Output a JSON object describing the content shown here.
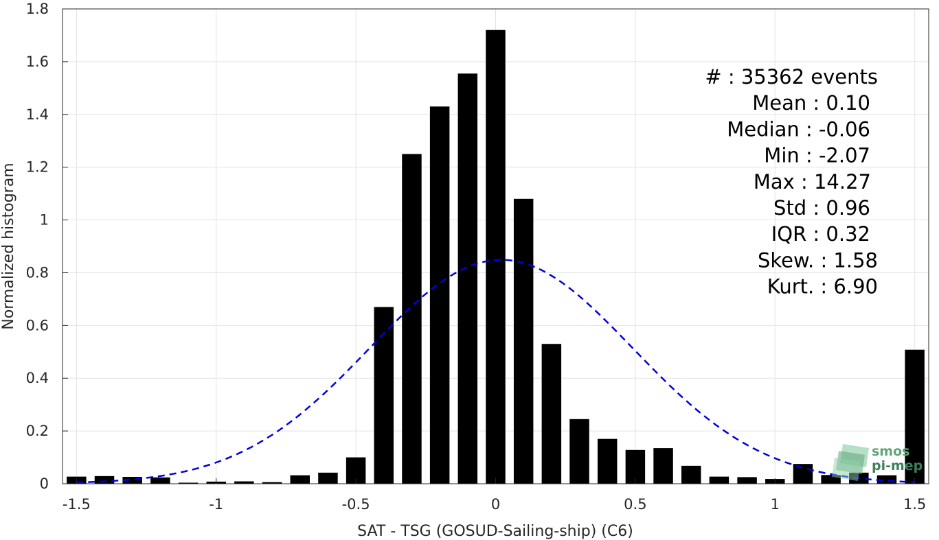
{
  "chart_data": {
    "type": "bar",
    "xlabel": "SAT - TSG (GOSUD-Sailing-ship) (C6)",
    "ylabel": "Normalized histogram",
    "xlim": [
      -1.55,
      1.55
    ],
    "ylim": [
      0,
      1.8
    ],
    "grid": true,
    "xticks": [
      "-1.5",
      "-1",
      "-0.5",
      "0",
      "0.5",
      "1",
      "1.5"
    ],
    "xtick_values": [
      -1.5,
      -1,
      -0.5,
      0,
      0.5,
      1,
      1.5
    ],
    "yticks": [
      "0",
      "0.2",
      "0.4",
      "0.6",
      "0.8",
      "1",
      "1.2",
      "1.4",
      "1.6",
      "1.8"
    ],
    "ytick_values": [
      0,
      0.2,
      0.4,
      0.6,
      0.8,
      1.0,
      1.2,
      1.4,
      1.6,
      1.8
    ],
    "bar_color": "#000000",
    "bars": {
      "x": [
        -1.5,
        -1.4,
        -1.3,
        -1.2,
        -1.1,
        -1.0,
        -0.9,
        -0.8,
        -0.7,
        -0.6,
        -0.5,
        -0.4,
        -0.3,
        -0.2,
        -0.1,
        0.0,
        0.1,
        0.2,
        0.3,
        0.4,
        0.5,
        0.6,
        0.7,
        0.8,
        0.9,
        1.0,
        1.1,
        1.2,
        1.3,
        1.4,
        1.5
      ],
      "values": [
        0.027,
        0.029,
        0.026,
        0.024,
        0.004,
        0.008,
        0.009,
        0.006,
        0.032,
        0.042,
        0.1,
        0.67,
        1.25,
        1.43,
        1.555,
        1.72,
        1.08,
        0.53,
        0.245,
        0.17,
        0.128,
        0.135,
        0.068,
        0.027,
        0.025,
        0.018,
        0.075,
        0.033,
        0.042,
        0.032,
        0.508
      ]
    },
    "fit_curve": {
      "type": "normal",
      "style": "dashed",
      "color": "#0000dd",
      "mean": 0.02,
      "std": 0.47,
      "x_range": [
        -1.5,
        1.5
      ]
    },
    "annotations": [
      {
        "label": "#  : 35362 events"
      },
      {
        "label": "Mean : 0.10"
      },
      {
        "label": "Median : -0.06"
      },
      {
        "label": "Min : -2.07"
      },
      {
        "label": "Max : 14.27"
      },
      {
        "label": "Std : 0.96"
      },
      {
        "label": "IQR : 0.32"
      },
      {
        "label": "Skew. : 1.58"
      },
      {
        "label": "Kurt. : 6.90"
      }
    ]
  },
  "logo": {
    "line1": "smos",
    "line2": "pi-mep",
    "icon": "stacked-layers-icon",
    "color": "#5fa57a"
  }
}
